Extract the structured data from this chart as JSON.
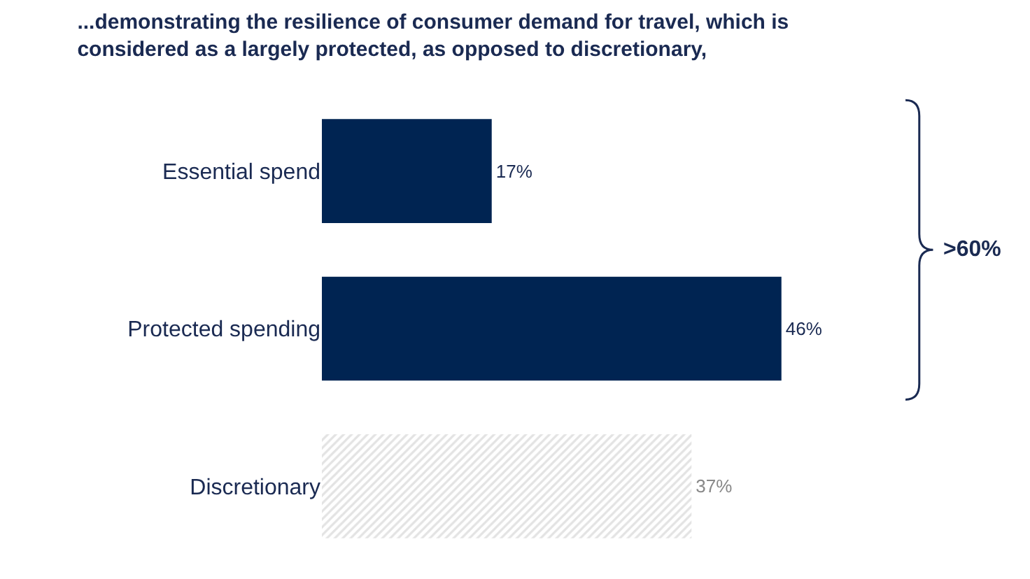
{
  "chart_data": {
    "type": "bar",
    "orientation": "horizontal",
    "title": "...demonstrating the resilience of consumer demand for travel, which is\nconsidered as a largely protected, as opposed to discretionary,",
    "categories": [
      "Essential spend",
      "Protected spending",
      "Discretionary"
    ],
    "values": [
      17,
      46,
      37
    ],
    "value_labels": [
      "17%",
      "46%",
      "37%"
    ],
    "colors": [
      "#002452",
      "#002452",
      "#c8c8c8"
    ],
    "annotations": [
      ">60%"
    ]
  }
}
